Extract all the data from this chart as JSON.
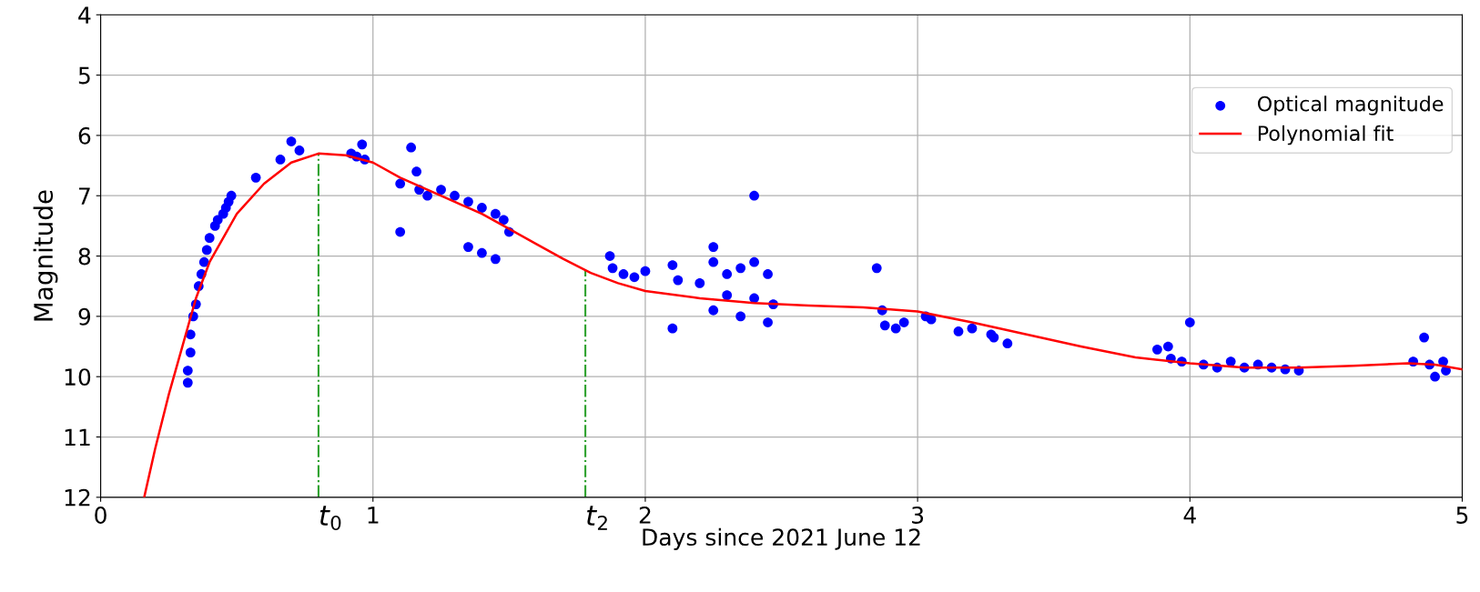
{
  "chart_data": {
    "type": "scatter",
    "xlabel": "Days since 2021 June 12",
    "ylabel": "Magnitude",
    "xlim": [
      0,
      5
    ],
    "ylim": [
      12,
      4
    ],
    "xticks": [
      0,
      1,
      2,
      3,
      4,
      5
    ],
    "yticks": [
      4,
      5,
      6,
      7,
      8,
      9,
      10,
      11,
      12
    ],
    "grid": true,
    "legend": "top right",
    "series": [
      {
        "name": "Optical magnitude",
        "color": "#0000ff",
        "marker": "circle",
        "x": [
          0.32,
          0.32,
          0.33,
          0.33,
          0.34,
          0.35,
          0.36,
          0.37,
          0.38,
          0.39,
          0.4,
          0.42,
          0.43,
          0.45,
          0.46,
          0.47,
          0.48,
          0.57,
          0.66,
          0.7,
          0.73,
          0.92,
          0.94,
          0.96,
          0.97,
          1.1,
          1.1,
          1.14,
          1.16,
          1.17,
          1.2,
          1.25,
          1.3,
          1.35,
          1.4,
          1.45,
          1.48,
          1.5,
          1.35,
          1.4,
          1.45,
          1.87,
          1.88,
          1.92,
          1.96,
          2.0,
          2.1,
          2.1,
          2.12,
          2.2,
          2.25,
          2.25,
          2.3,
          2.35,
          2.4,
          2.45,
          2.4,
          2.3,
          2.25,
          2.35,
          2.45,
          2.4,
          2.47,
          2.85,
          2.87,
          2.88,
          2.92,
          2.95,
          3.03,
          3.05,
          3.15,
          3.2,
          3.27,
          3.28,
          3.33,
          3.88,
          3.92,
          3.93,
          3.97,
          4.0,
          4.05,
          4.1,
          4.15,
          4.2,
          4.25,
          4.3,
          4.35,
          4.4,
          4.82,
          4.86,
          4.88,
          4.9,
          4.93,
          4.94
        ],
        "values": [
          10.1,
          9.9,
          9.6,
          9.3,
          9.0,
          8.8,
          8.5,
          8.3,
          8.1,
          7.9,
          7.7,
          7.5,
          7.4,
          7.3,
          7.2,
          7.1,
          7.0,
          6.7,
          6.4,
          6.1,
          6.25,
          6.3,
          6.35,
          6.15,
          6.4,
          6.8,
          7.6,
          6.2,
          6.6,
          6.9,
          7.0,
          6.9,
          7.0,
          7.1,
          7.2,
          7.3,
          7.4,
          7.6,
          7.85,
          7.95,
          8.05,
          8.0,
          8.2,
          8.3,
          8.35,
          8.25,
          8.15,
          9.2,
          8.4,
          8.45,
          7.85,
          8.1,
          8.3,
          8.2,
          8.1,
          8.3,
          7.0,
          8.65,
          8.9,
          9.0,
          9.1,
          8.7,
          8.8,
          8.2,
          8.9,
          9.15,
          9.2,
          9.1,
          9.0,
          9.05,
          9.25,
          9.2,
          9.3,
          9.35,
          9.45,
          9.55,
          9.5,
          9.7,
          9.75,
          9.1,
          9.8,
          9.85,
          9.75,
          9.85,
          9.8,
          9.85,
          9.88,
          9.9,
          9.75,
          9.35,
          9.8,
          10.0,
          9.75,
          9.9
        ]
      },
      {
        "name": "Polynomial fit",
        "color": "#ff0000",
        "type": "line",
        "line_style": "solid",
        "x": [
          0.16,
          0.2,
          0.25,
          0.3,
          0.35,
          0.4,
          0.5,
          0.6,
          0.7,
          0.8,
          0.9,
          1.0,
          1.1,
          1.2,
          1.3,
          1.4,
          1.5,
          1.6,
          1.7,
          1.8,
          1.9,
          2.0,
          2.2,
          2.4,
          2.6,
          2.8,
          3.0,
          3.2,
          3.4,
          3.6,
          3.8,
          4.0,
          4.2,
          4.4,
          4.6,
          4.8,
          4.9,
          5.0
        ],
        "values": [
          12,
          11.2,
          10.3,
          9.5,
          8.7,
          8.1,
          7.3,
          6.8,
          6.45,
          6.3,
          6.33,
          6.45,
          6.7,
          6.9,
          7.1,
          7.3,
          7.55,
          7.8,
          8.05,
          8.28,
          8.45,
          8.58,
          8.7,
          8.78,
          8.82,
          8.85,
          8.92,
          9.1,
          9.3,
          9.5,
          9.68,
          9.78,
          9.85,
          9.85,
          9.82,
          9.78,
          9.8,
          9.88
        ]
      }
    ],
    "ref_lines": [
      {
        "axis": "x",
        "value": 0.8,
        "label": "t$_{0}$",
        "color": "#2ca02c",
        "line_style": "dashdot"
      },
      {
        "axis": "x",
        "value": 1.78,
        "label": "t$_{2}$",
        "color": "#2ca02c",
        "line_style": "dashdot"
      }
    ]
  }
}
